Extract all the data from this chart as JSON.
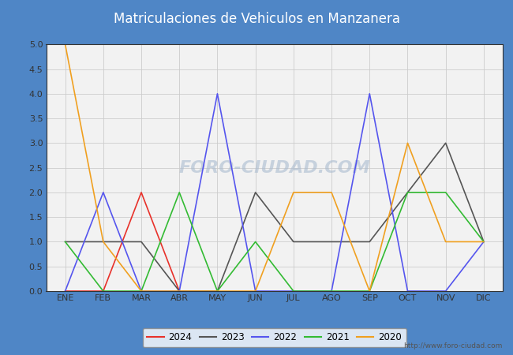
{
  "title": "Matriculaciones de Vehiculos en Manzanera",
  "months": [
    "ENE",
    "FEB",
    "MAR",
    "ABR",
    "MAY",
    "JUN",
    "JUL",
    "AGO",
    "SEP",
    "OCT",
    "NOV",
    "DIC"
  ],
  "series": {
    "2024": [
      0,
      0,
      2,
      0,
      0,
      null,
      null,
      null,
      null,
      null,
      null,
      null
    ],
    "2023": [
      1,
      1,
      1,
      0,
      0,
      2,
      1,
      1,
      1,
      2,
      3,
      1
    ],
    "2022": [
      0,
      2,
      0,
      0,
      4,
      0,
      0,
      0,
      4,
      0,
      0,
      1
    ],
    "2021": [
      1,
      0,
      0,
      2,
      0,
      1,
      0,
      0,
      0,
      2,
      2,
      1
    ],
    "2020": [
      5,
      1,
      0,
      0,
      0,
      0,
      2,
      2,
      0,
      3,
      1,
      1
    ]
  },
  "colors": {
    "2024": "#e8312a",
    "2023": "#555555",
    "2022": "#5555ee",
    "2021": "#33bb33",
    "2020": "#f0a020"
  },
  "ylim": [
    0,
    5.0
  ],
  "yticks": [
    0.0,
    0.5,
    1.0,
    1.5,
    2.0,
    2.5,
    3.0,
    3.5,
    4.0,
    4.5,
    5.0
  ],
  "title_bg_color": "#4f86c6",
  "title_text_color": "#ffffff",
  "plot_bg_color": "#f2f2f2",
  "outer_bg_color": "#4f86c6",
  "watermark": "FORO-CIUDAD.COM",
  "url": "http://www.foro-ciudad.com",
  "title_fontsize": 12,
  "legend_years": [
    "2024",
    "2023",
    "2022",
    "2021",
    "2020"
  ]
}
